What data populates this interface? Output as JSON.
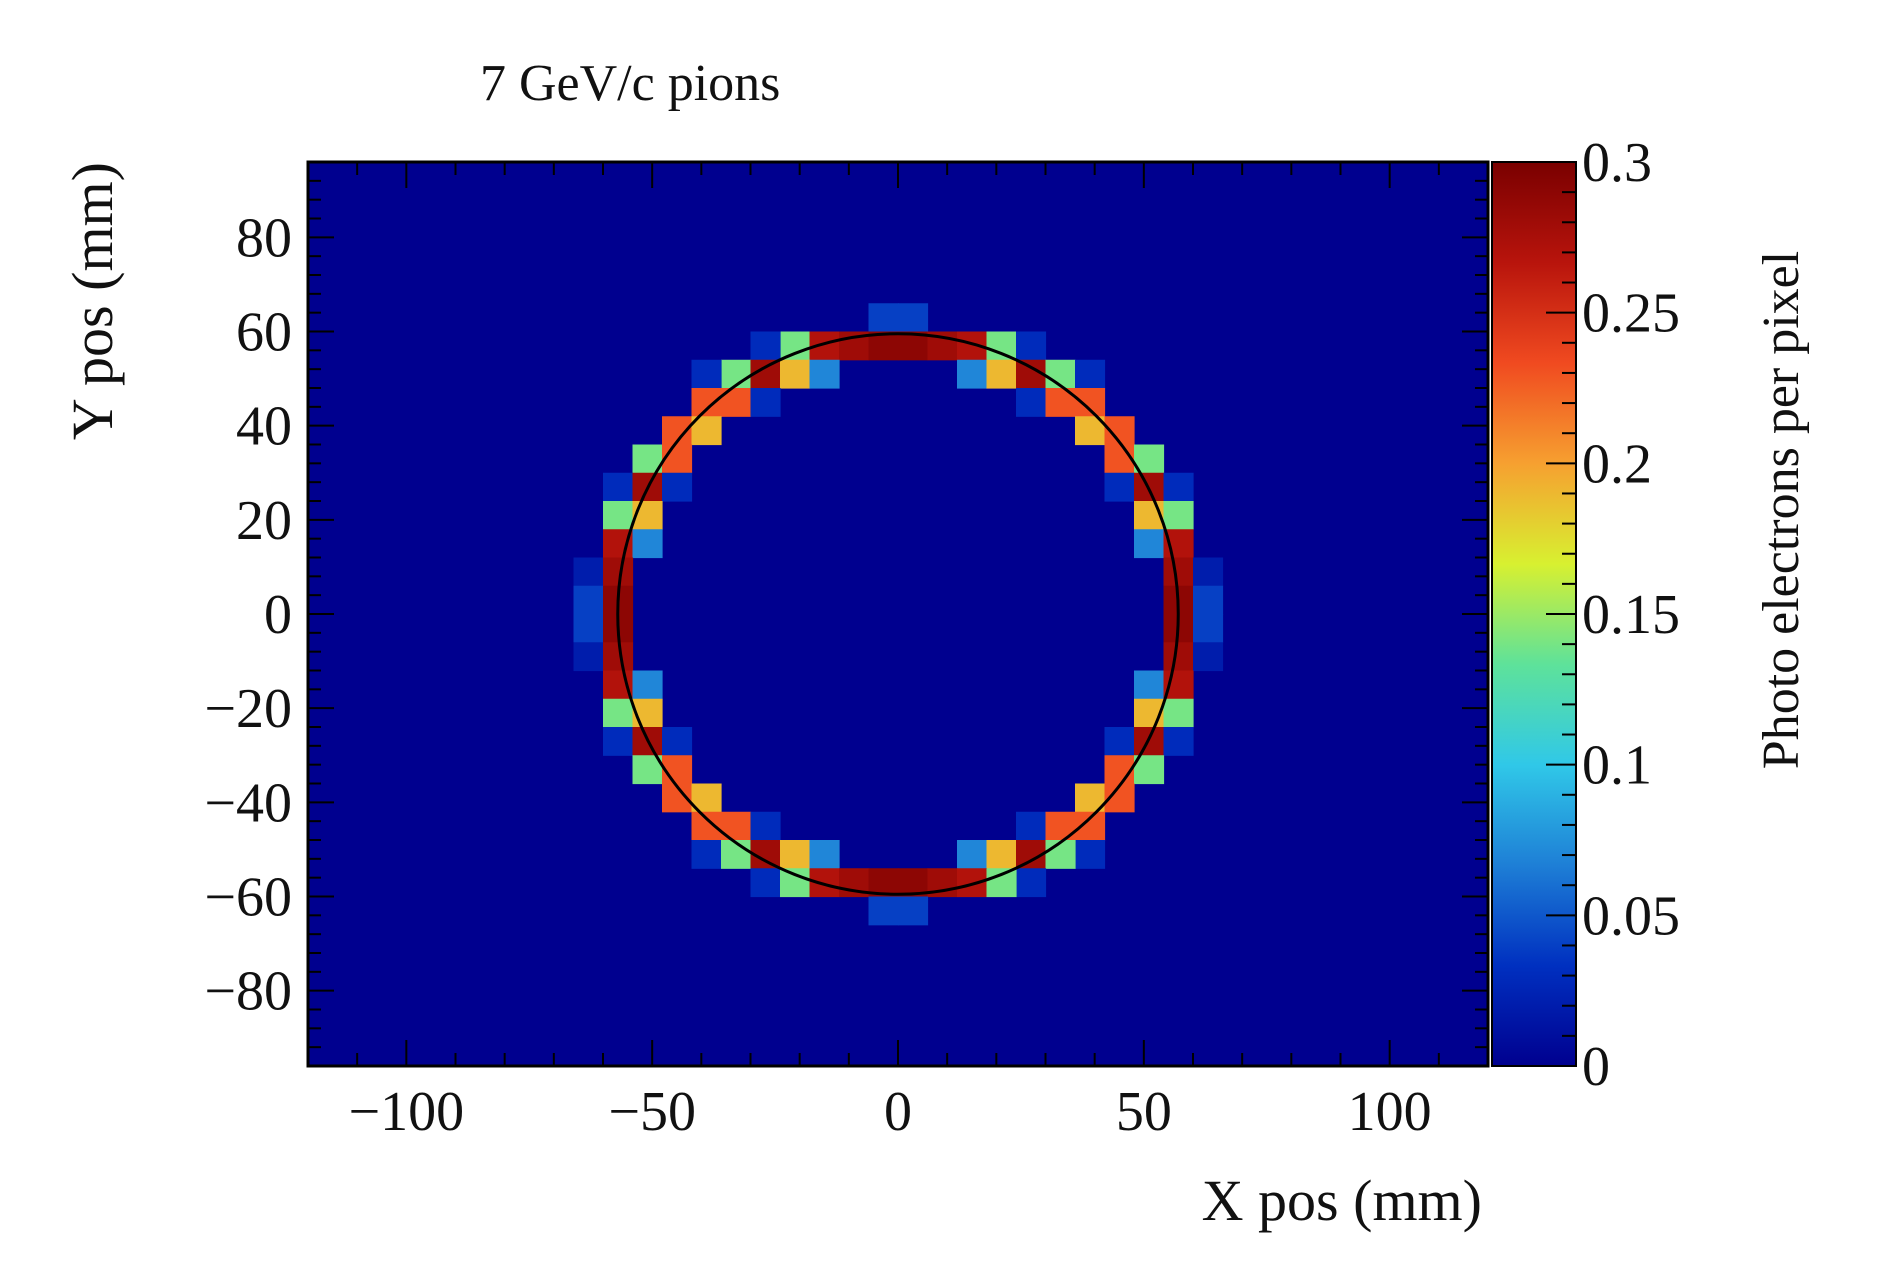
{
  "chart_data": {
    "type": "heatmap",
    "title": "7 GeV/c pions",
    "xlabel": "X pos (mm)",
    "ylabel": "Y pos (mm)",
    "zlabel": "Photo electrons per pixel",
    "xlim": [
      -120,
      120
    ],
    "ylim": [
      -96,
      96
    ],
    "zlim": [
      0,
      0.3
    ],
    "xticks": [
      -100,
      -50,
      0,
      50,
      100
    ],
    "xtick_labels": [
      "−100",
      "−50",
      "0",
      "50",
      "100"
    ],
    "yticks": [
      -80,
      -60,
      -40,
      -20,
      0,
      20,
      40,
      60,
      80
    ],
    "ytick_labels": [
      "−80",
      "−60",
      "−40",
      "−20",
      "0",
      "20",
      "40",
      "60",
      "80"
    ],
    "zticks": [
      0,
      0.05,
      0.1,
      0.15,
      0.2,
      0.25,
      0.3
    ],
    "ztick_labels": [
      "0",
      "0.05",
      "0.1",
      "0.15",
      "0.2",
      "0.25",
      "0.3"
    ],
    "background_value": 0,
    "colormap": [
      "#00008f",
      "#0030c0",
      "#1e7fd6",
      "#30c8e8",
      "#5ee29a",
      "#d8f030",
      "#f6a030",
      "#f04a20",
      "#b8140c",
      "#7a0000"
    ],
    "ring_fit": {
      "center": [
        0,
        0
      ],
      "radius_mm": 57
    },
    "cells": [
      {
        "x": -3,
        "y": 63,
        "z": 0.04
      },
      {
        "x": 3,
        "y": 63,
        "z": 0.04
      },
      {
        "x": -21,
        "y": 57,
        "z": 0.14
      },
      {
        "x": -15,
        "y": 57,
        "z": 0.27
      },
      {
        "x": -9,
        "y": 57,
        "z": 0.28
      },
      {
        "x": -3,
        "y": 57,
        "z": 0.29
      },
      {
        "x": 3,
        "y": 57,
        "z": 0.29
      },
      {
        "x": 9,
        "y": 57,
        "z": 0.28
      },
      {
        "x": 15,
        "y": 57,
        "z": 0.27
      },
      {
        "x": 21,
        "y": 57,
        "z": 0.14
      },
      {
        "x": -27,
        "y": 57,
        "z": 0.03
      },
      {
        "x": 27,
        "y": 57,
        "z": 0.03
      },
      {
        "x": -33,
        "y": 51,
        "z": 0.14
      },
      {
        "x": -27,
        "y": 51,
        "z": 0.28
      },
      {
        "x": -21,
        "y": 51,
        "z": 0.19
      },
      {
        "x": -15,
        "y": 51,
        "z": 0.07
      },
      {
        "x": 15,
        "y": 51,
        "z": 0.07
      },
      {
        "x": 21,
        "y": 51,
        "z": 0.19
      },
      {
        "x": 27,
        "y": 51,
        "z": 0.28
      },
      {
        "x": 33,
        "y": 51,
        "z": 0.14
      },
      {
        "x": -39,
        "y": 51,
        "z": 0.03
      },
      {
        "x": 39,
        "y": 51,
        "z": 0.03
      },
      {
        "x": -39,
        "y": 45,
        "z": 0.23
      },
      {
        "x": -33,
        "y": 45,
        "z": 0.23
      },
      {
        "x": -27,
        "y": 45,
        "z": 0.03
      },
      {
        "x": 27,
        "y": 45,
        "z": 0.03
      },
      {
        "x": 33,
        "y": 45,
        "z": 0.23
      },
      {
        "x": 39,
        "y": 45,
        "z": 0.23
      },
      {
        "x": -45,
        "y": 39,
        "z": 0.23
      },
      {
        "x": -39,
        "y": 39,
        "z": 0.19
      },
      {
        "x": 39,
        "y": 39,
        "z": 0.19
      },
      {
        "x": 45,
        "y": 39,
        "z": 0.23
      },
      {
        "x": -51,
        "y": 33,
        "z": 0.14
      },
      {
        "x": -45,
        "y": 33,
        "z": 0.23
      },
      {
        "x": 45,
        "y": 33,
        "z": 0.23
      },
      {
        "x": 51,
        "y": 33,
        "z": 0.14
      },
      {
        "x": -57,
        "y": 27,
        "z": 0.03
      },
      {
        "x": -51,
        "y": 27,
        "z": 0.28
      },
      {
        "x": -45,
        "y": 27,
        "z": 0.03
      },
      {
        "x": 45,
        "y": 27,
        "z": 0.03
      },
      {
        "x": 51,
        "y": 27,
        "z": 0.28
      },
      {
        "x": 57,
        "y": 27,
        "z": 0.03
      },
      {
        "x": -57,
        "y": 21,
        "z": 0.14
      },
      {
        "x": -51,
        "y": 21,
        "z": 0.19
      },
      {
        "x": 51,
        "y": 21,
        "z": 0.19
      },
      {
        "x": 57,
        "y": 21,
        "z": 0.14
      },
      {
        "x": -57,
        "y": 15,
        "z": 0.27
      },
      {
        "x": -51,
        "y": 15,
        "z": 0.07
      },
      {
        "x": 51,
        "y": 15,
        "z": 0.07
      },
      {
        "x": 57,
        "y": 15,
        "z": 0.27
      },
      {
        "x": -63,
        "y": 9,
        "z": 0.02
      },
      {
        "x": -57,
        "y": 9,
        "z": 0.28
      },
      {
        "x": 57,
        "y": 9,
        "z": 0.28
      },
      {
        "x": 63,
        "y": 9,
        "z": 0.02
      },
      {
        "x": -63,
        "y": 3,
        "z": 0.04
      },
      {
        "x": -57,
        "y": 3,
        "z": 0.29
      },
      {
        "x": 57,
        "y": 3,
        "z": 0.29
      },
      {
        "x": 63,
        "y": 3,
        "z": 0.04
      },
      {
        "x": -63,
        "y": -3,
        "z": 0.04
      },
      {
        "x": -57,
        "y": -3,
        "z": 0.29
      },
      {
        "x": 57,
        "y": -3,
        "z": 0.29
      },
      {
        "x": 63,
        "y": -3,
        "z": 0.04
      },
      {
        "x": -63,
        "y": -9,
        "z": 0.02
      },
      {
        "x": -57,
        "y": -9,
        "z": 0.28
      },
      {
        "x": 57,
        "y": -9,
        "z": 0.28
      },
      {
        "x": 63,
        "y": -9,
        "z": 0.02
      },
      {
        "x": -57,
        "y": -15,
        "z": 0.27
      },
      {
        "x": -51,
        "y": -15,
        "z": 0.07
      },
      {
        "x": 51,
        "y": -15,
        "z": 0.07
      },
      {
        "x": 57,
        "y": -15,
        "z": 0.27
      },
      {
        "x": -57,
        "y": -21,
        "z": 0.14
      },
      {
        "x": -51,
        "y": -21,
        "z": 0.19
      },
      {
        "x": 51,
        "y": -21,
        "z": 0.19
      },
      {
        "x": 57,
        "y": -21,
        "z": 0.14
      },
      {
        "x": -57,
        "y": -27,
        "z": 0.03
      },
      {
        "x": -51,
        "y": -27,
        "z": 0.28
      },
      {
        "x": -45,
        "y": -27,
        "z": 0.03
      },
      {
        "x": 45,
        "y": -27,
        "z": 0.03
      },
      {
        "x": 51,
        "y": -27,
        "z": 0.28
      },
      {
        "x": 57,
        "y": -27,
        "z": 0.03
      },
      {
        "x": -51,
        "y": -33,
        "z": 0.14
      },
      {
        "x": -45,
        "y": -33,
        "z": 0.23
      },
      {
        "x": 45,
        "y": -33,
        "z": 0.23
      },
      {
        "x": 51,
        "y": -33,
        "z": 0.14
      },
      {
        "x": -45,
        "y": -39,
        "z": 0.23
      },
      {
        "x": -39,
        "y": -39,
        "z": 0.19
      },
      {
        "x": 39,
        "y": -39,
        "z": 0.19
      },
      {
        "x": 45,
        "y": -39,
        "z": 0.23
      },
      {
        "x": -39,
        "y": -45,
        "z": 0.23
      },
      {
        "x": -33,
        "y": -45,
        "z": 0.23
      },
      {
        "x": -27,
        "y": -45,
        "z": 0.03
      },
      {
        "x": 27,
        "y": -45,
        "z": 0.03
      },
      {
        "x": 33,
        "y": -45,
        "z": 0.23
      },
      {
        "x": 39,
        "y": -45,
        "z": 0.23
      },
      {
        "x": -39,
        "y": -51,
        "z": 0.03
      },
      {
        "x": 39,
        "y": -51,
        "z": 0.03
      },
      {
        "x": -33,
        "y": -51,
        "z": 0.14
      },
      {
        "x": -27,
        "y": -51,
        "z": 0.28
      },
      {
        "x": -21,
        "y": -51,
        "z": 0.19
      },
      {
        "x": -15,
        "y": -51,
        "z": 0.07
      },
      {
        "x": 15,
        "y": -51,
        "z": 0.07
      },
      {
        "x": 21,
        "y": -51,
        "z": 0.19
      },
      {
        "x": 27,
        "y": -51,
        "z": 0.28
      },
      {
        "x": 33,
        "y": -51,
        "z": 0.14
      },
      {
        "x": -27,
        "y": -57,
        "z": 0.03
      },
      {
        "x": 27,
        "y": -57,
        "z": 0.03
      },
      {
        "x": -21,
        "y": -57,
        "z": 0.14
      },
      {
        "x": -15,
        "y": -57,
        "z": 0.27
      },
      {
        "x": -9,
        "y": -57,
        "z": 0.28
      },
      {
        "x": -3,
        "y": -57,
        "z": 0.29
      },
      {
        "x": 3,
        "y": -57,
        "z": 0.29
      },
      {
        "x": 9,
        "y": -57,
        "z": 0.28
      },
      {
        "x": 15,
        "y": -57,
        "z": 0.27
      },
      {
        "x": 21,
        "y": -57,
        "z": 0.14
      },
      {
        "x": -3,
        "y": -63,
        "z": 0.04
      },
      {
        "x": 3,
        "y": -63,
        "z": 0.04
      }
    ]
  }
}
